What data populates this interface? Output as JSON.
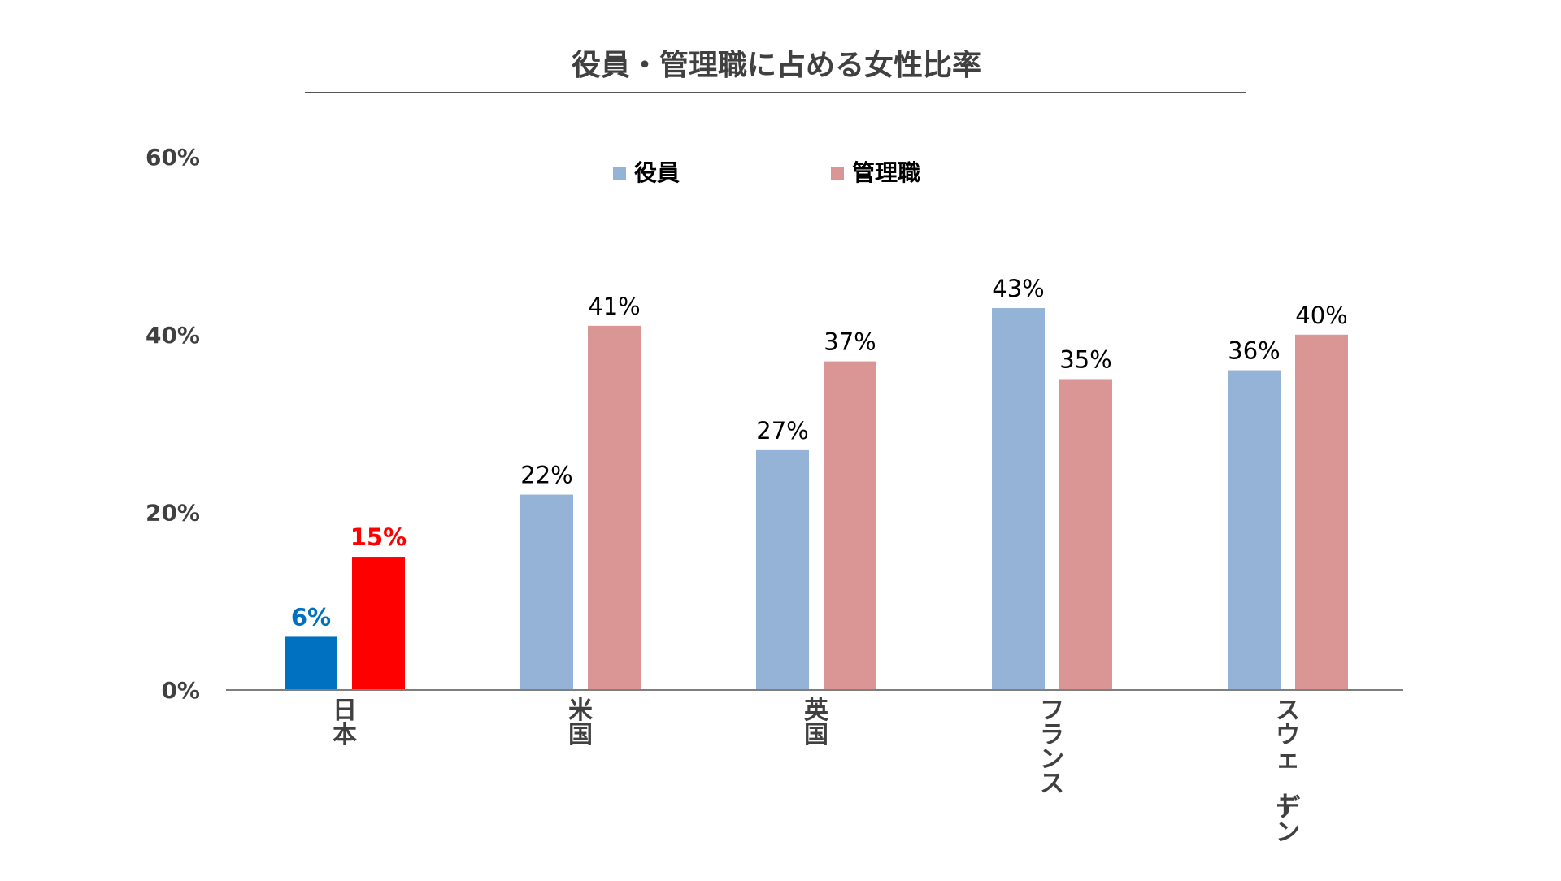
{
  "chart_data": {
    "type": "bar",
    "title": "役員・管理職に占める女性比率",
    "categories": [
      "日本",
      "米国",
      "英国",
      "フランス",
      "スウェーデン"
    ],
    "series": [
      {
        "name": "役員",
        "color": "#95B3D7",
        "values": [
          6,
          22,
          27,
          43,
          36
        ],
        "labels": [
          "6%",
          "22%",
          "27%",
          "43%",
          "36%"
        ]
      },
      {
        "name": "管理職",
        "color": "#D99694",
        "values": [
          15,
          41,
          37,
          35,
          40
        ],
        "labels": [
          "15%",
          "41%",
          "37%",
          "35%",
          "40%"
        ]
      }
    ],
    "highlight": {
      "category_index": 0,
      "colors": [
        "#0070C0",
        "#FF0000"
      ]
    },
    "y_ticks": [
      {
        "value": 0,
        "label": "0%"
      },
      {
        "value": 20,
        "label": "20%"
      },
      {
        "value": 40,
        "label": "40%"
      },
      {
        "value": 60,
        "label": "60%"
      }
    ],
    "ylim": [
      0,
      60
    ],
    "xlabel": "",
    "ylabel": "",
    "grid": false,
    "legend_position": "top-center"
  }
}
